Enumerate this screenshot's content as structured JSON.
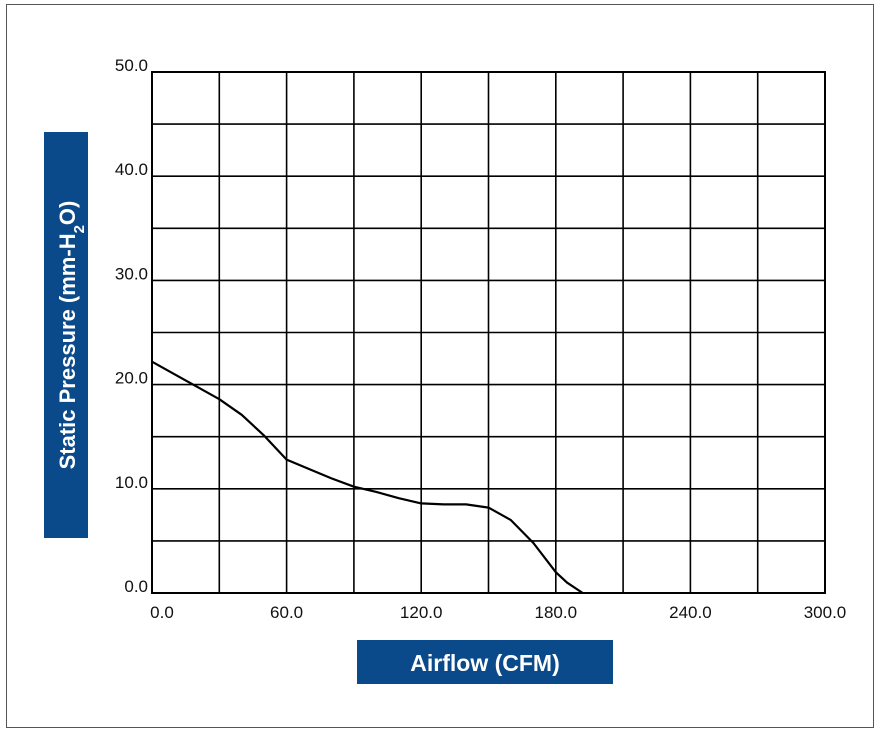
{
  "chart_data": {
    "type": "line",
    "title": "",
    "xlabel": "Airflow (CFM)",
    "ylabel_main": "Static Pressure (mm-H",
    "ylabel_sub": "2",
    "ylabel_tail": "O)",
    "xlim": [
      0,
      300
    ],
    "ylim": [
      0,
      50
    ],
    "x_major_ticks": [
      0,
      60,
      120,
      180,
      240,
      300
    ],
    "x_tick_labels": [
      "0.0",
      "60.0",
      "120.0",
      "180.0",
      "240.0",
      "300.0"
    ],
    "y_major_ticks": [
      0,
      10,
      20,
      30,
      40,
      50
    ],
    "y_tick_labels": [
      "0.0",
      "10.0",
      "20.0",
      "30.0",
      "40.0",
      "50.0"
    ],
    "x_grid_step": 30,
    "y_grid_step": 5,
    "grid": true,
    "series": [
      {
        "x": [
          0,
          10,
          20,
          30,
          40,
          50,
          60,
          70,
          80,
          90,
          100,
          110,
          120,
          130,
          140,
          150,
          160,
          170,
          180,
          185,
          192
        ],
        "y": [
          22.2,
          21.0,
          19.8,
          18.6,
          17.1,
          15.1,
          12.8,
          11.9,
          11.0,
          10.2,
          9.7,
          9.1,
          8.6,
          8.5,
          8.5,
          8.2,
          7.0,
          4.8,
          2.0,
          1.0,
          0.0
        ]
      }
    ],
    "colors": {
      "line": "#000000",
      "grid": "#000000",
      "label_box": "#0a4a8a",
      "label_text": "#ffffff",
      "frame": "#555555"
    }
  }
}
